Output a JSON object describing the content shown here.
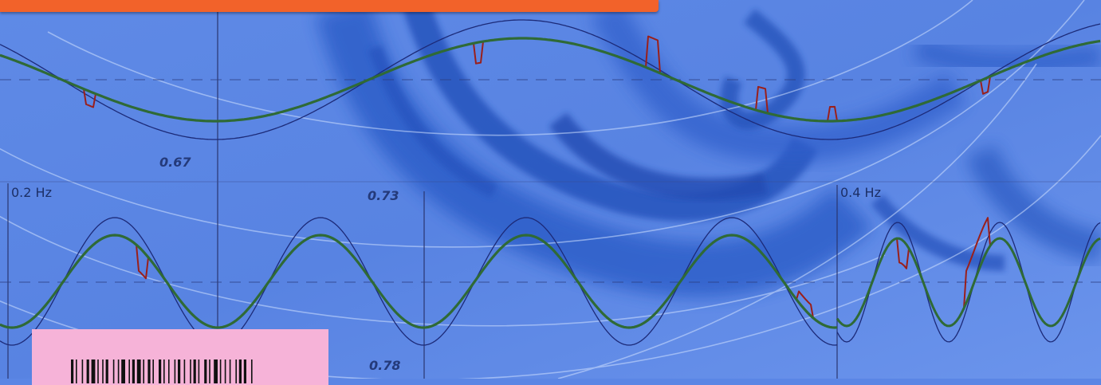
{
  "labels": {
    "period_upper": "0.67",
    "period_mid": "0.73",
    "period_lower": "0.78",
    "freq_left": "0.2 Hz",
    "freq_right": "0.4 Hz"
  },
  "colors": {
    "background": "#5b86e5",
    "navy_trace": "#1c2a78",
    "green_trace": "#2f6a36",
    "red_trace": "#9a1f1a",
    "orange_band": "#f2622a",
    "sticker": "#f6b3d8",
    "smoke": "#1f4fb8"
  },
  "decor": {
    "barcode": "barcode-icon",
    "smoke": "blue-smoke-swirl"
  }
}
